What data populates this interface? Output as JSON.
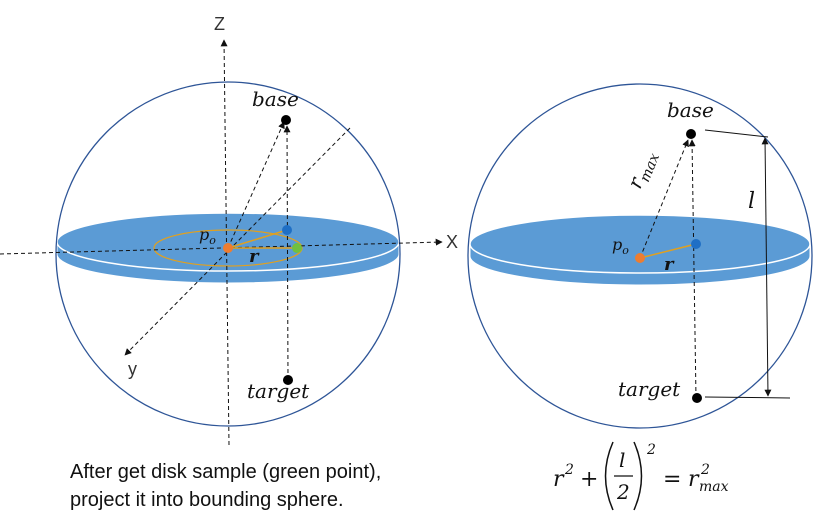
{
  "left_figure": {
    "axis_z": "Z",
    "axis_x": "X",
    "axis_y": "y",
    "label_base": "base",
    "label_target": "target",
    "label_p": "p",
    "label_p_sub": "o",
    "label_r": "r"
  },
  "right_figure": {
    "label_base": "base",
    "label_target": "target",
    "label_p": "p",
    "label_p_sub": "o",
    "label_r": "r",
    "label_rmax": "r",
    "label_rmax_sub": "max",
    "label_l": "l"
  },
  "caption": {
    "line1": "After get disk sample (green point),",
    "line2": "project it into bounding sphere."
  },
  "equation": {
    "r": "r",
    "exp2": "2",
    "plus": "+",
    "frac_num": "l",
    "frac_den": "2",
    "equals": "=",
    "rhs": "r",
    "rhs_sup": "2",
    "rhs_sub": "max"
  },
  "colors": {
    "sphere_stroke": "#2e5597",
    "disk_fill": "#5b9bd5",
    "circle_stroke": "#e0a020",
    "origin_point": "#ed7d31",
    "disk_point": "#1f6fc5",
    "sample_point": "#70c040",
    "dark_point": "#000000"
  }
}
